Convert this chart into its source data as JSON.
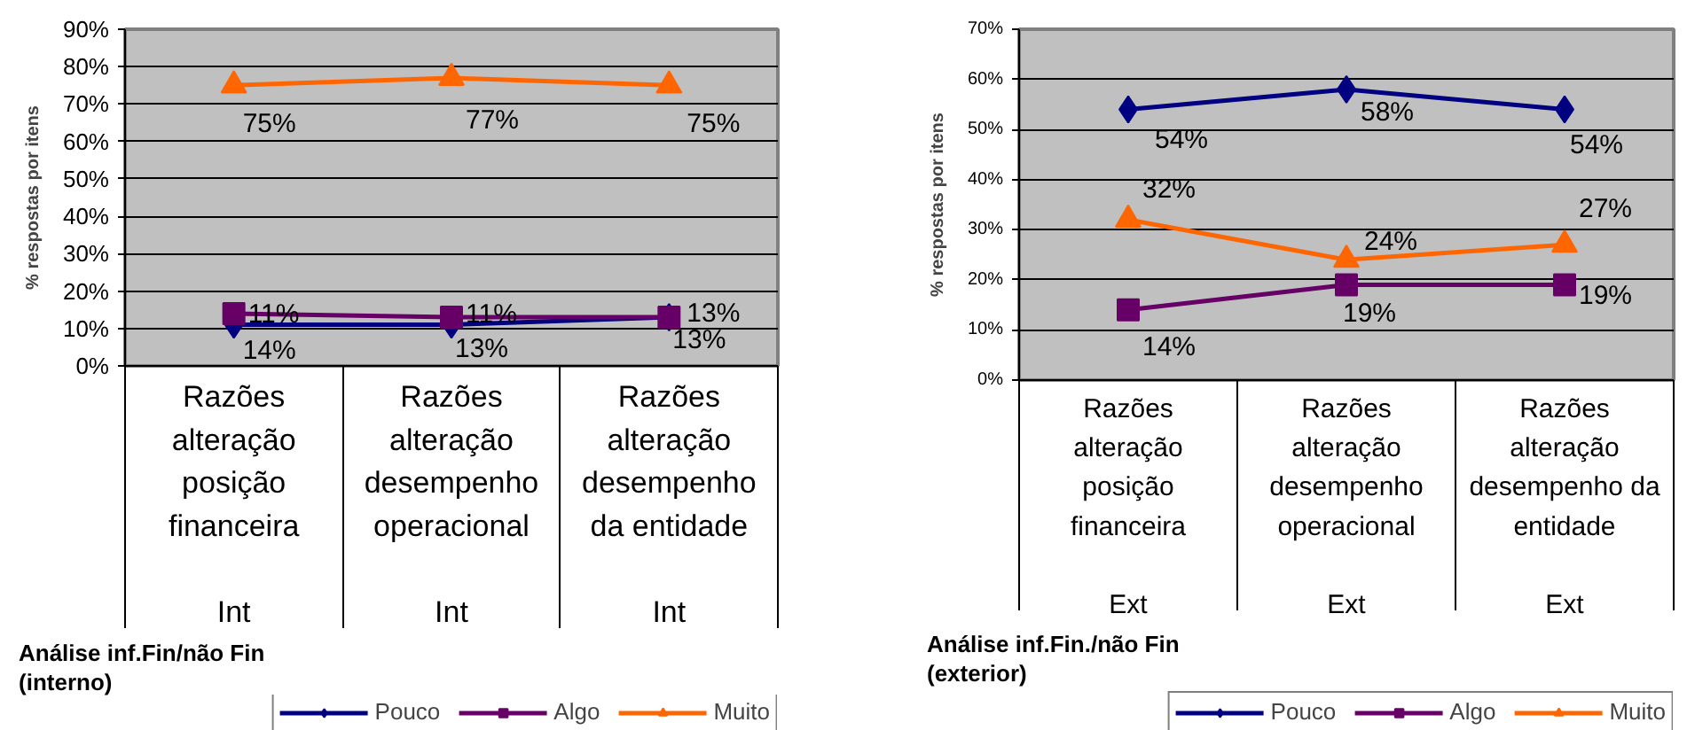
{
  "chart_data": [
    {
      "type": "line",
      "ylabel": "% respostas por itens",
      "xlabel": "Análise inf.Fin/não Fin\n(interno)",
      "categories": [
        "Razões\nalteração\nposição\nfinanceira\n\nInt",
        "Razões\nalteração\ndesempenho\noperacional\n\nInt",
        "Razões\nalteração\ndesempenho\nda entidade\n\nInt"
      ],
      "series": [
        {
          "name": "Pouco",
          "color": "#000080",
          "marker": "diamond",
          "values": [
            11,
            11,
            13
          ],
          "value_labels": [
            "11%",
            "11%",
            "13%"
          ]
        },
        {
          "name": "Algo",
          "color": "#660066",
          "marker": "square",
          "values": [
            14,
            13,
            13
          ],
          "value_labels": [
            "14%",
            "13%",
            "13%"
          ]
        },
        {
          "name": "Muito",
          "color": "#ff6600",
          "marker": "triangle",
          "values": [
            75,
            77,
            75
          ],
          "value_labels": [
            "75%",
            "77%",
            "75%"
          ]
        }
      ],
      "ylim": [
        0,
        90
      ],
      "yticks": [
        {
          "value": 0,
          "label": "0%"
        },
        {
          "value": 10,
          "label": "10%"
        },
        {
          "value": 20,
          "label": "20%"
        },
        {
          "value": 30,
          "label": "30%"
        },
        {
          "value": 40,
          "label": "40%"
        },
        {
          "value": 50,
          "label": "50%"
        },
        {
          "value": 60,
          "label": "60%"
        },
        {
          "value": 70,
          "label": "70%"
        },
        {
          "value": 80,
          "label": "80%"
        },
        {
          "value": 90,
          "label": "90%"
        }
      ],
      "grid": "y",
      "legend": "bottom right",
      "line_style": "solid"
    },
    {
      "type": "line",
      "ylabel": "% respostas por itens",
      "xlabel": "Análise inf.Fin./não Fin\n(exterior)",
      "categories": [
        "Razões\nalteração\nposição\nfinanceira\n\nExt",
        "Razões\nalteração\ndesempenho\noperacional\n\nExt",
        "Razões\nalteração\ndesempenho da\nentidade\n\nExt"
      ],
      "series": [
        {
          "name": "Pouco",
          "color": "#000080",
          "marker": "diamond",
          "values": [
            54,
            58,
            54
          ],
          "value_labels": [
            "54%",
            "58%",
            "54%"
          ]
        },
        {
          "name": "Algo",
          "color": "#660066",
          "marker": "square",
          "values": [
            14,
            19,
            19
          ],
          "value_labels": [
            "14%",
            "19%",
            "19%"
          ]
        },
        {
          "name": "Muito",
          "color": "#ff6600",
          "marker": "triangle",
          "values": [
            32,
            24,
            27
          ],
          "value_labels": [
            "32%",
            "24%",
            "27%"
          ]
        }
      ],
      "ylim": [
        0,
        70
      ],
      "yticks": [
        {
          "value": 0,
          "label": "0%"
        },
        {
          "value": 10,
          "label": "10%"
        },
        {
          "value": 20,
          "label": "20%"
        },
        {
          "value": 30,
          "label": "30%"
        },
        {
          "value": 40,
          "label": "40%"
        },
        {
          "value": 50,
          "label": "50%"
        },
        {
          "value": 60,
          "label": "60%"
        },
        {
          "value": 70,
          "label": "70%"
        }
      ],
      "grid": "y",
      "legend": "bottom right",
      "line_style": "solid"
    }
  ]
}
